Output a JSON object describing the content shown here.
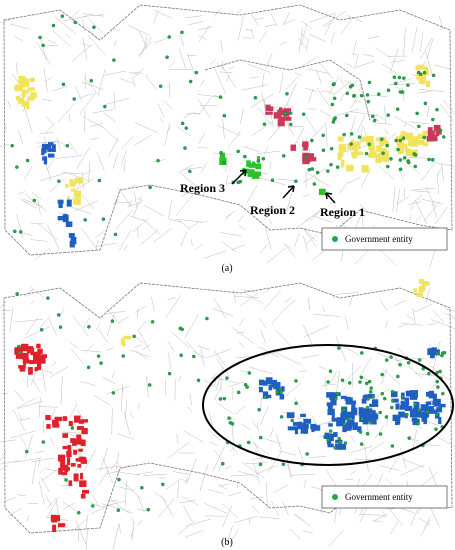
{
  "panels": [
    {
      "label": "(a)",
      "regions": [
        "Region 3",
        "Region 2",
        "Region 1"
      ],
      "legend": "Government entity"
    },
    {
      "label": "(b)",
      "legend": "Government entity"
    }
  ]
}
